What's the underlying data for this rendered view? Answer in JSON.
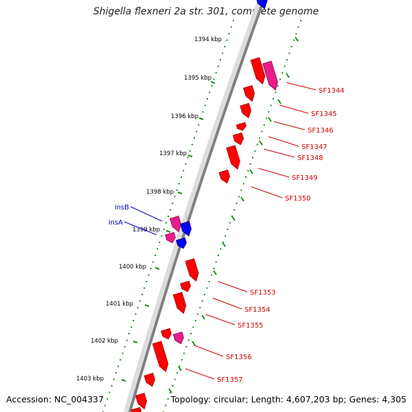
{
  "title": "Shigella flexneri 2a str. 301, complete genome",
  "footer": {
    "accession": "Accession: NC_004337",
    "topology": "Topology: circular; Length: 4,607,203 bp; Genes: 4,305"
  },
  "colors": {
    "cds": "#ff0000",
    "cds_pseudo": "#e61e8c",
    "mobile_element": "#0000ff",
    "ruler_ticks": "#1a8a1a",
    "backbone": "#808080",
    "gene_label_right": "#cc0000",
    "gene_label_left": "#0000cc"
  },
  "ruler_labels": [
    "1394 kbp",
    "1395 kbp",
    "1396 kbp",
    "1397 kbp",
    "1398 kbp",
    "1399 kbp",
    "1400 kbp",
    "1401 kbp",
    "1402 kbp",
    "1403 kbp"
  ],
  "gene_labels_right": [
    "SF1344",
    "SF1345",
    "SF1346",
    "SF1347",
    "SF1348",
    "SF1349",
    "SF1350",
    "SF1353",
    "SF1354",
    "SF1355",
    "SF1356",
    "SF1357"
  ],
  "gene_labels_left": [
    "insB",
    "insA"
  ]
}
